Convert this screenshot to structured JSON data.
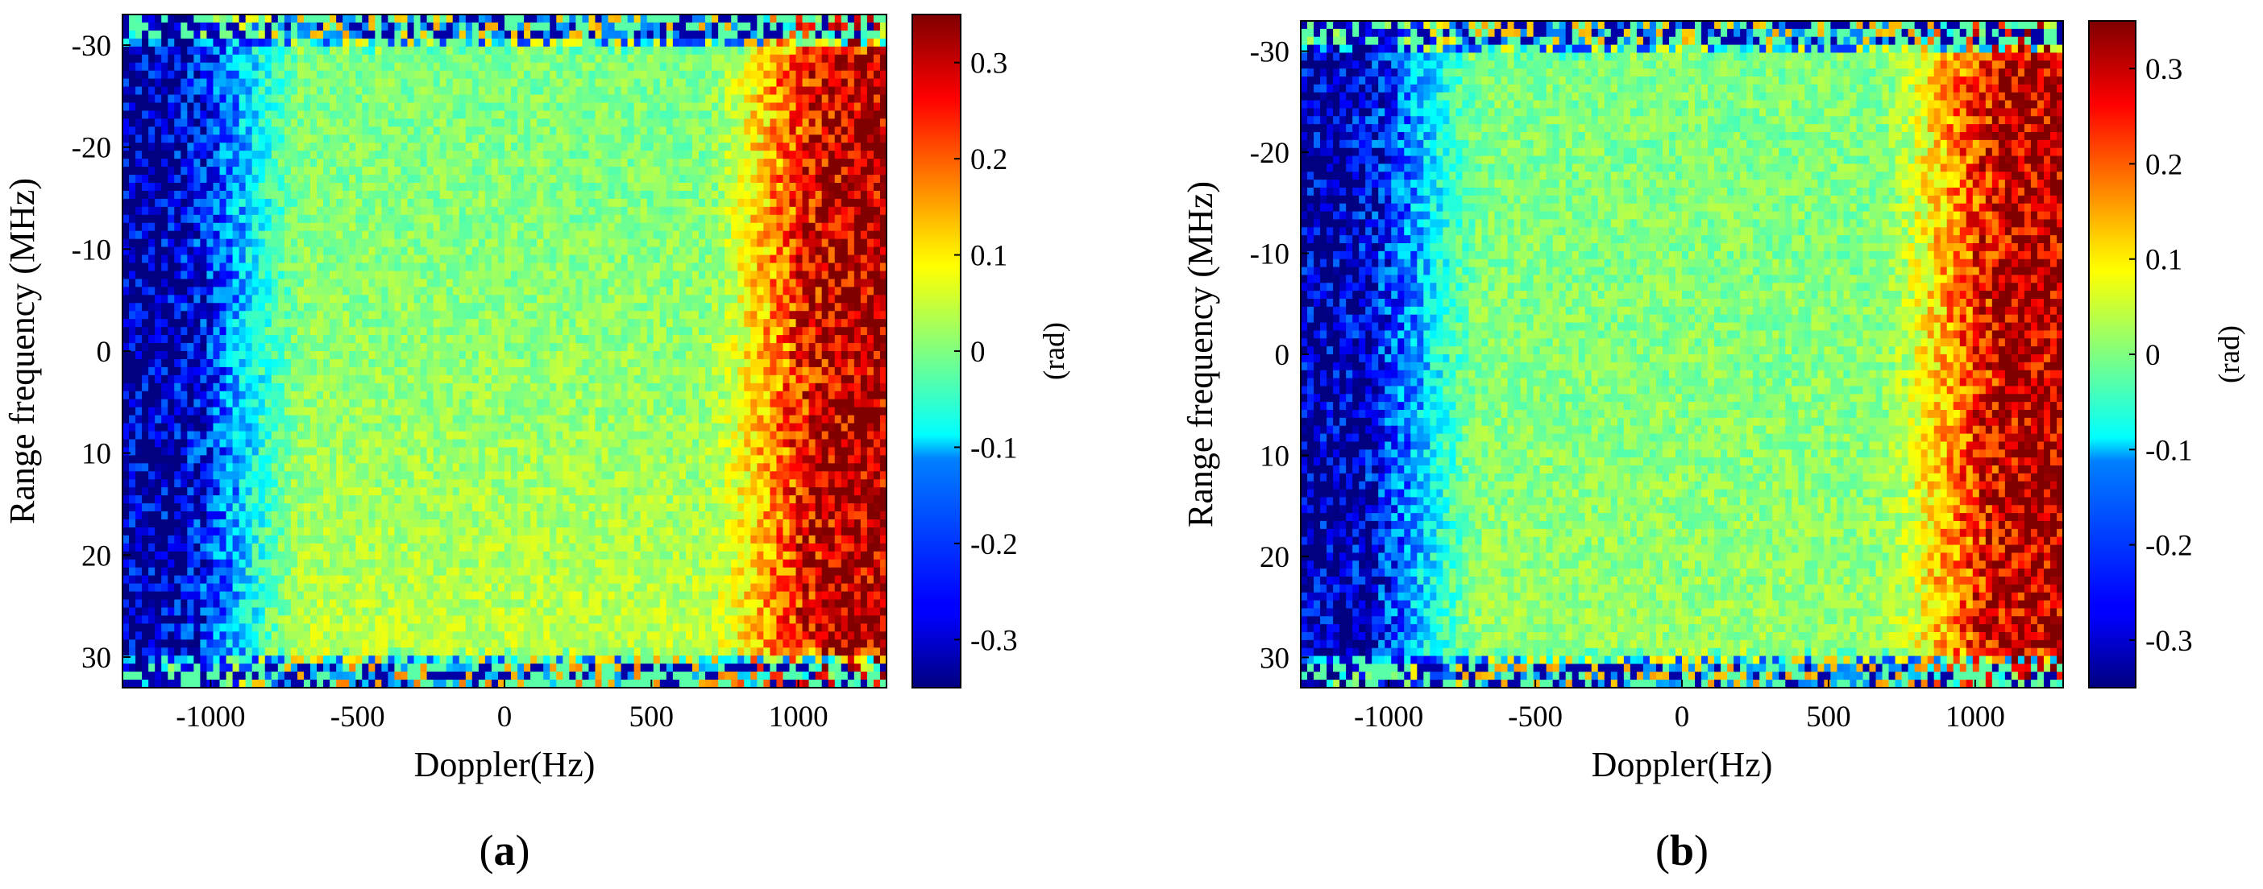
{
  "chart_data": [
    {
      "type": "heatmap",
      "panel_label": "a",
      "xlabel": "Doppler(Hz)",
      "ylabel": "Range frequency (MHz)",
      "colorbar_label": "(rad)",
      "xlim": [
        -1300,
        1300
      ],
      "ylim": [
        -33,
        33
      ],
      "y_reversed": true,
      "xticks": [
        -1000,
        -500,
        0,
        500,
        1000
      ],
      "xtick_labels": [
        "-1000",
        "-500",
        "0",
        "500",
        "1000"
      ],
      "yticks": [
        -30,
        -20,
        -10,
        0,
        10,
        20,
        30
      ],
      "ytick_labels": [
        "-30",
        "-20",
        "-10",
        "0",
        "10",
        "20",
        "30"
      ],
      "clim": [
        -0.35,
        0.35
      ],
      "colorbar_ticks": [
        0.3,
        0.2,
        0.1,
        0,
        -0.1,
        -0.2,
        -0.3
      ],
      "colorbar_tick_labels": [
        "0.3",
        "0.2",
        "0.1",
        "0",
        "-0.1",
        "-0.2",
        "-0.3"
      ],
      "colormap": "jet",
      "data_region": {
        "x": [
          -900,
          900
        ],
        "y": [
          -29.5,
          29.5
        ]
      },
      "center_value": 0.0,
      "bottom_center_value": 0.05,
      "left_edge_value": -0.33,
      "right_edge_value": 0.33,
      "noise_amplitude": 0.04
    },
    {
      "type": "heatmap",
      "panel_label": "b",
      "xlabel": "Doppler(Hz)",
      "ylabel": "Range frequency (MHz)",
      "colorbar_label": "(rad)",
      "xlim": [
        -1300,
        1300
      ],
      "ylim": [
        -33,
        33
      ],
      "y_reversed": true,
      "xticks": [
        -1000,
        -500,
        0,
        500,
        1000
      ],
      "xtick_labels": [
        "-1000",
        "-500",
        "0",
        "500",
        "1000"
      ],
      "yticks": [
        -30,
        -20,
        -10,
        0,
        10,
        20,
        30
      ],
      "ytick_labels": [
        "-30",
        "-20",
        "-10",
        "0",
        "10",
        "20",
        "30"
      ],
      "clim": [
        -0.35,
        0.35
      ],
      "colorbar_ticks": [
        0.3,
        0.2,
        0.1,
        0,
        -0.1,
        -0.2,
        -0.3
      ],
      "colorbar_tick_labels": [
        "0.3",
        "0.2",
        "0.1",
        "0",
        "-0.1",
        "-0.2",
        "-0.3"
      ],
      "colormap": "jet",
      "data_region": {
        "x": [
          -900,
          900
        ],
        "y": [
          -29.5,
          29.5
        ]
      },
      "center_value": 0.0,
      "bottom_center_value": 0.02,
      "left_edge_value": -0.33,
      "right_edge_value": 0.33,
      "noise_amplitude": 0.04
    }
  ],
  "panels": {
    "a": {
      "caption_open": "(",
      "caption_letter": "a",
      "caption_close": ")"
    },
    "b": {
      "caption_open": "(",
      "caption_letter": "b",
      "caption_close": ")"
    }
  }
}
